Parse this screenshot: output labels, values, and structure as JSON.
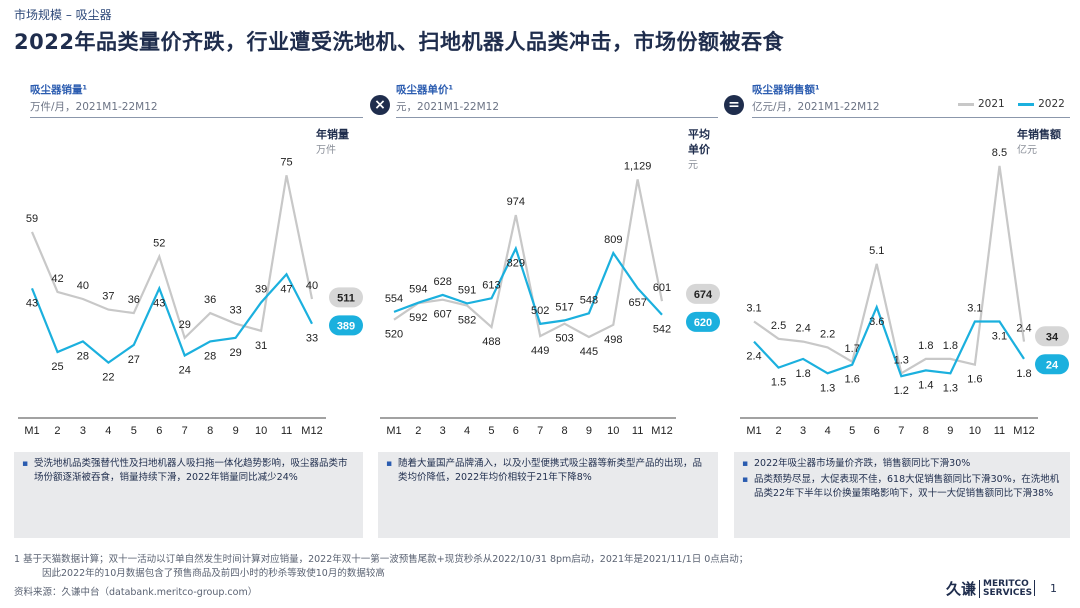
{
  "header": {
    "breadcrumb": "市场规模 – 吸尘器",
    "title": "2022年品类量价齐跌，行业遭受洗地机、扫地机器人品类冲击，市场份额被吞食"
  },
  "operators": {
    "multiply": "×",
    "equals": "="
  },
  "legend": {
    "y2021": "2021",
    "y2022": "2022"
  },
  "colors": {
    "y2021": "#c8c8c8",
    "y2022": "#1bb0de",
    "annual2021": "#d6d6d6",
    "annual2022": "#1bb0de"
  },
  "panels": [
    {
      "title": "吸尘器销量¹",
      "subtitle": "万件/月，2021M1-22M12",
      "annual_label": "年销量",
      "annual_unit": "万件",
      "bullets": [
        "受洗地机品类强替代性及扫地机器人吸扫拖一体化趋势影响，吸尘器品类市场份额逐渐被吞食，销量持续下滑，2022年销量同比减少24%"
      ]
    },
    {
      "title": "吸尘器单价¹",
      "subtitle": "元，2021M1-22M12",
      "annual_label": "平均单价",
      "annual_unit": "元",
      "bullets": [
        "随着大量国产品牌涌入，以及小型便携式吸尘器等新类型产品的出现，品类均价降低，2022年均价相较于21年下降8%"
      ]
    },
    {
      "title": "吸尘器销售额¹",
      "subtitle": "亿元/月，2021M1-22M12",
      "annual_label": "年销售额",
      "annual_unit": "亿元",
      "bullets": [
        "2022年吸尘器市场量价齐跌，销售额同比下滑30%",
        "品类颓势尽显，大促表现不佳，618大促销售额同比下滑30%，在洗地机品类22年下半年以价换量策略影响下，双十一大促销售额同比下滑38%"
      ]
    }
  ],
  "chart_data": [
    {
      "type": "line",
      "title": "吸尘器销量",
      "x": [
        "M1",
        "2",
        "3",
        "4",
        "5",
        "6",
        "7",
        "8",
        "9",
        "10",
        "11",
        "M12"
      ],
      "series": [
        {
          "name": "2021",
          "values": [
            59,
            42,
            40,
            37,
            36,
            52,
            29,
            36,
            33,
            31,
            75,
            40
          ],
          "labels": [
            "59",
            "42",
            "40",
            "37",
            "36",
            "52",
            "29",
            "36",
            "33",
            "31",
            "75",
            "40"
          ]
        },
        {
          "name": "2022",
          "values": [
            43,
            25,
            28,
            22,
            27,
            43,
            24,
            28,
            29,
            39,
            47,
            33
          ],
          "labels": [
            "43",
            "25",
            "28",
            "22",
            "27",
            "43",
            "24",
            "28",
            "29",
            "39",
            "47",
            "33"
          ]
        }
      ],
      "annual": {
        "y2021": "511",
        "y2022": "389"
      },
      "ylim": [
        10,
        85
      ]
    },
    {
      "type": "line",
      "title": "吸尘器单价",
      "x": [
        "M1",
        "2",
        "3",
        "4",
        "5",
        "6",
        "7",
        "8",
        "9",
        "10",
        "11",
        "M12"
      ],
      "series": [
        {
          "name": "2021",
          "values": [
            520,
            592,
            607,
            582,
            488,
            974,
            449,
            503,
            445,
            498,
            1129,
            601
          ],
          "labels": [
            "520",
            "592",
            "607",
            "582",
            "488",
            "974",
            "449",
            "503",
            "445",
            "498",
            "1,129",
            "601"
          ]
        },
        {
          "name": "2022",
          "values": [
            554,
            594,
            628,
            591,
            613,
            829,
            502,
            517,
            548,
            809,
            657,
            542
          ],
          "labels": [
            "554",
            "594",
            "628",
            "591",
            "613",
            "829",
            "502",
            "517",
            "548",
            "809",
            "657",
            "542"
          ]
        }
      ],
      "annual": {
        "y2021": "674",
        "y2022": "620"
      },
      "ylim": [
        150,
        1300
      ]
    },
    {
      "type": "line",
      "title": "吸尘器销售额",
      "x": [
        "M1",
        "2",
        "3",
        "4",
        "5",
        "6",
        "7",
        "8",
        "9",
        "10",
        "11",
        "M12"
      ],
      "series": [
        {
          "name": "2021",
          "values": [
            3.1,
            2.5,
            2.4,
            2.2,
            1.7,
            5.1,
            1.3,
            1.8,
            1.8,
            1.6,
            8.5,
            2.4
          ],
          "labels": [
            "3.1",
            "2.5",
            "2.4",
            "2.2",
            "1.7",
            "5.1",
            "1.3",
            "1.8",
            "1.8",
            "1.6",
            "8.5",
            "2.4"
          ]
        },
        {
          "name": "2022",
          "values": [
            2.4,
            1.5,
            1.8,
            1.3,
            1.6,
            3.6,
            1.2,
            1.4,
            1.3,
            3.1,
            3.1,
            1.8
          ],
          "labels": [
            "2.4",
            "1.5",
            "1.8",
            "1.3",
            "1.6",
            "3.6",
            "1.2",
            "1.4",
            "1.3",
            "3.1",
            "3.1",
            "1.8"
          ]
        }
      ],
      "annual": {
        "y2021": "34",
        "y2022": "24"
      },
      "ylim": [
        0.2,
        9.4
      ]
    }
  ],
  "footnote": {
    "line1": "1 基于天猫数据计算；双十一活动以订单自然发生时间计算对应销量，2022年双十一第一波预售尾款+现货秒杀从2022/10/31 8pm启动，2021年是2021/11/1日 0点启动；",
    "line2": "因此2022年的10月数据包含了预售商品及前四小时的秒杀等致使10月的数据较高"
  },
  "source": "资料来源：久谦中台（databank.meritco-group.com）",
  "logo": {
    "cn": "久谦",
    "en1": "MERITCO",
    "en2": "SERVICES"
  },
  "page_number": "1"
}
